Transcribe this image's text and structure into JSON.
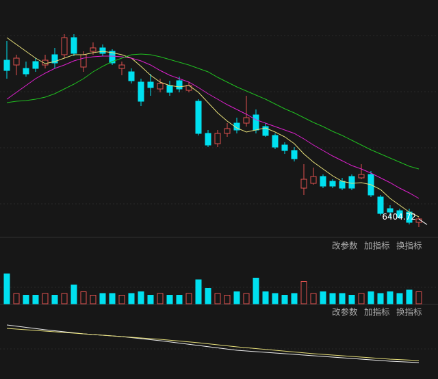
{
  "chart_data": {
    "type": "candlestick",
    "ylim": [
      6380,
      6725
    ],
    "last_price": 6404.72,
    "open": [
      6637,
      6630,
      6625,
      6635,
      6630,
      6645,
      6645,
      6670,
      6627,
      6650,
      6655,
      6650,
      6625,
      6620,
      6605,
      6605,
      6595,
      6600,
      6607,
      6593,
      6577,
      6530,
      6515,
      6530,
      6545,
      6545,
      6557,
      6540,
      6527,
      6513,
      6505,
      6450,
      6457,
      6467,
      6460,
      6460,
      6467,
      6465,
      6470,
      6437,
      6420,
      6417,
      6415,
      6400
    ],
    "close": [
      6622,
      6640,
      6617,
      6625,
      6637,
      6633,
      6670,
      6647,
      6645,
      6655,
      6647,
      6633,
      6630,
      6607,
      6577,
      6597,
      6603,
      6590,
      6595,
      6600,
      6530,
      6513,
      6530,
      6537,
      6535,
      6553,
      6535,
      6527,
      6510,
      6505,
      6493,
      6463,
      6467,
      6453,
      6453,
      6450,
      6450,
      6470,
      6440,
      6413,
      6415,
      6407,
      6400,
      6405
    ],
    "high": [
      6665,
      6645,
      6635,
      6640,
      6645,
      6655,
      6675,
      6675,
      6650,
      6663,
      6660,
      6653,
      6635,
      6625,
      6610,
      6617,
      6610,
      6607,
      6613,
      6605,
      6580,
      6535,
      6535,
      6545,
      6553,
      6585,
      6565,
      6545,
      6530,
      6517,
      6510,
      6485,
      6480,
      6470,
      6463,
      6465,
      6470,
      6485,
      6475,
      6440,
      6425,
      6420,
      6420,
      6407
    ],
    "low": [
      6610,
      6615,
      6613,
      6620,
      6625,
      6625,
      6640,
      6643,
      6620,
      6645,
      6643,
      6630,
      6615,
      6603,
      6570,
      6585,
      6590,
      6585,
      6590,
      6590,
      6527,
      6510,
      6510,
      6525,
      6530,
      6540,
      6530,
      6525,
      6507,
      6500,
      6489,
      6440,
      6455,
      6450,
      6450,
      6447,
      6447,
      6463,
      6437,
      6410,
      6407,
      6405,
      6397,
      6393
    ],
    "series": [
      {
        "name": "MA5",
        "color": "#e8e07a",
        "values": [
          6670,
          6660,
          6650,
          6640,
          6632,
          6635,
          6640,
          6645,
          6645,
          6648,
          6650,
          6648,
          6645,
          6640,
          6628,
          6615,
          6605,
          6600,
          6598,
          6600,
          6590,
          6575,
          6560,
          6548,
          6538,
          6532,
          6535,
          6538,
          6532,
          6525,
          6515,
          6500,
          6488,
          6478,
          6468,
          6460,
          6457,
          6458,
          6455,
          6448,
          6435,
          6425,
          6415,
          6408
        ]
      },
      {
        "name": "MA10",
        "color": "#e020d0",
        "values": [
          6580,
          6590,
          6600,
          6610,
          6618,
          6625,
          6630,
          6636,
          6640,
          6642,
          6643,
          6643,
          6642,
          6640,
          6636,
          6630,
          6622,
          6615,
          6610,
          6605,
          6597,
          6588,
          6580,
          6572,
          6565,
          6558,
          6550,
          6545,
          6540,
          6535,
          6530,
          6522,
          6513,
          6505,
          6497,
          6490,
          6483,
          6478,
          6472,
          6465,
          6458,
          6450,
          6443,
          6435
        ]
      },
      {
        "name": "MA20",
        "color": "#20c020",
        "values": [
          6575,
          6577,
          6578,
          6580,
          6583,
          6588,
          6595,
          6602,
          6610,
          6620,
          6628,
          6635,
          6640,
          6645,
          6646,
          6645,
          6642,
          6638,
          6634,
          6630,
          6625,
          6620,
          6612,
          6605,
          6598,
          6592,
          6586,
          6580,
          6573,
          6566,
          6560,
          6553,
          6546,
          6540,
          6533,
          6527,
          6520,
          6513,
          6506,
          6500,
          6494,
          6488,
          6482,
          6478
        ]
      }
    ],
    "volume": {
      "ylim": [
        0,
        40
      ],
      "values": [
        35,
        12,
        10,
        10,
        12,
        10,
        12,
        22,
        14,
        10,
        12,
        12,
        10,
        12,
        14,
        10,
        12,
        10,
        10,
        12,
        28,
        18,
        12,
        10,
        14,
        12,
        30,
        14,
        12,
        10,
        12,
        26,
        12,
        14,
        12,
        12,
        10,
        12,
        14,
        12,
        14,
        12,
        16,
        14
      ]
    },
    "macd": {
      "ylim": [
        -4,
        4
      ],
      "x": [
        0,
        4,
        8,
        12,
        16,
        20,
        24,
        28,
        32,
        36,
        40,
        43
      ],
      "series": [
        {
          "name": "DIF",
          "color": "#f0f0f0",
          "values": [
            3.5,
            2.8,
            2.2,
            1.8,
            1.2,
            0.5,
            -0.2,
            -0.6,
            -1.0,
            -1.4,
            -1.8,
            -2.0
          ]
        },
        {
          "name": "DEA",
          "color": "#e8e07a",
          "values": [
            3.0,
            2.6,
            2.2,
            1.8,
            1.4,
            0.9,
            0.3,
            -0.2,
            -0.7,
            -1.1,
            -1.5,
            -1.7
          ]
        }
      ]
    }
  },
  "toolbars": [
    [
      "改参数",
      "加指标",
      "换指标"
    ],
    [
      "改参数",
      "加指标",
      "换指标"
    ]
  ]
}
